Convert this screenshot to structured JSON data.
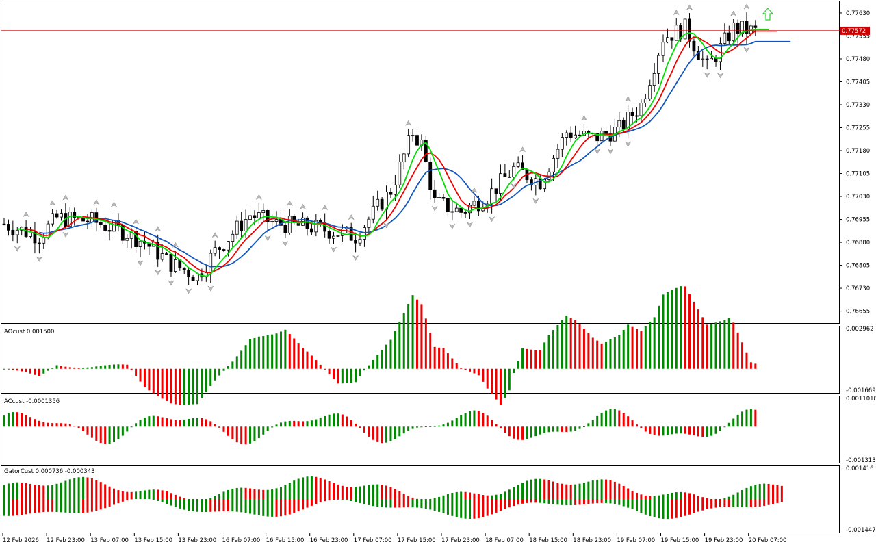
{
  "chart_data": [
    {
      "type": "candlestick",
      "ylim": [
        0.76616,
        0.77668
      ],
      "y_ticks": [
        "0.77630",
        "0.77555",
        "0.77480",
        "0.77405",
        "0.77330",
        "0.77255",
        "0.77180",
        "0.77105",
        "0.77030",
        "0.76955",
        "0.76880",
        "0.76805",
        "0.76730",
        "0.76655"
      ],
      "current_price": 0.77572,
      "current_price_label": "0.77572",
      "signal_arrow": "up-arrow-icon",
      "colors": {
        "up_body": "#ffffff",
        "down_body": "#000000",
        "lips": "#00dd00",
        "teeth": "#ee0000",
        "jaw": "#1155bb",
        "price_line": "#cc0000",
        "arrow": "#33cc33"
      }
    },
    {
      "type": "bar",
      "name": "AOcust 0.001500",
      "ylim": [
        -0.00169,
        0.00296
      ],
      "y_ticks": [
        "0.002962",
        "-0.001669"
      ]
    },
    {
      "type": "bar",
      "name": "ACcust -0.0001356",
      "ylim": [
        -0.001313,
        0.0011018
      ],
      "y_ticks": [
        "0.0011018",
        "-0.0013130"
      ]
    },
    {
      "type": "bar",
      "name": "GatorCust 0.000736 -0.000343",
      "ylim": [
        -0.001447,
        0.001416
      ],
      "y_ticks": [
        "0.001416",
        "-0.001447"
      ]
    }
  ],
  "x_ticks": [
    "12 Feb 2026",
    "12 Feb 23:00",
    "13 Feb 07:00",
    "13 Feb 15:00",
    "13 Feb 23:00",
    "16 Feb 07:00",
    "16 Feb 15:00",
    "16 Feb 23:00",
    "17 Feb 07:00",
    "17 Feb 15:00",
    "17 Feb 23:00",
    "18 Feb 07:00",
    "18 Feb 15:00",
    "18 Feb 23:00",
    "19 Feb 07:00",
    "19 Feb 15:00",
    "19 Feb 23:00",
    "20 Feb 07:00"
  ]
}
